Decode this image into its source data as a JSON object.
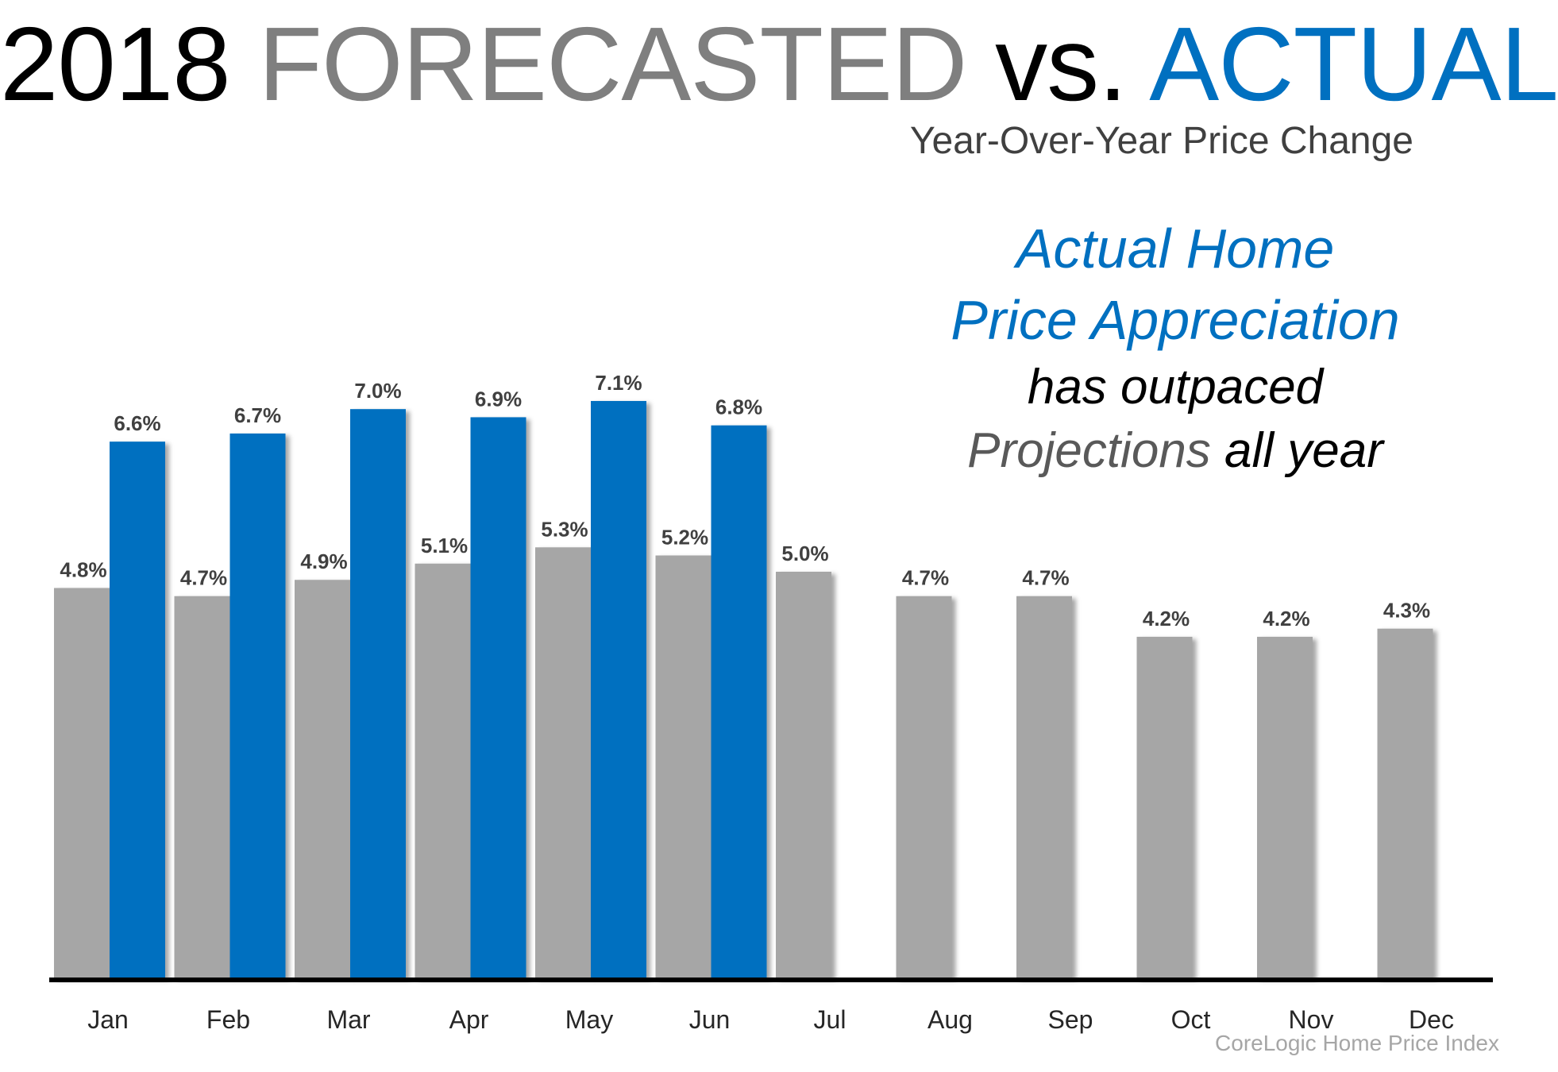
{
  "title": {
    "part1": "2018",
    "part2": "FORECASTED",
    "part3": "vs.",
    "part4": "ACTUAL"
  },
  "subtitle": "Year-Over-Year Price Change",
  "callout": {
    "line1": "Actual Home",
    "line2": "Price Appreciation",
    "line3": "has outpaced",
    "line4a": "Projections",
    "line4b": "all year"
  },
  "source": "CoreLogic Home Price Index",
  "colors": {
    "forecast": "#a6a6a6",
    "actual": "#0070c0",
    "axis": "#000000",
    "label": "#404040"
  },
  "chart_data": {
    "type": "bar",
    "title": "2018 FORECASTED vs. ACTUAL",
    "subtitle": "Year-Over-Year Price Change",
    "xlabel": "",
    "ylabel": "",
    "ylim": [
      0,
      8.0
    ],
    "grid": false,
    "categories": [
      "Jan",
      "Feb",
      "Mar",
      "Apr",
      "May",
      "Jun",
      "Jul",
      "Aug",
      "Sep",
      "Oct",
      "Nov",
      "Dec"
    ],
    "series": [
      {
        "name": "Forecasted",
        "values": [
          4.8,
          4.7,
          4.9,
          5.1,
          5.3,
          5.2,
          5.0,
          4.7,
          4.7,
          4.2,
          4.2,
          4.3
        ],
        "labels": [
          "4.8%",
          "4.7%",
          "4.9%",
          "5.1%",
          "5.3%",
          "5.2%",
          "5.0%",
          "4.7%",
          "4.7%",
          "4.2%",
          "4.2%",
          "4.3%"
        ]
      },
      {
        "name": "Actual",
        "values": [
          6.6,
          6.7,
          7.0,
          6.9,
          7.1,
          6.8,
          null,
          null,
          null,
          null,
          null,
          null
        ],
        "labels": [
          "6.6%",
          "6.7%",
          "7.0%",
          "6.9%",
          "7.1%",
          "6.8%",
          null,
          null,
          null,
          null,
          null,
          null
        ]
      }
    ]
  }
}
